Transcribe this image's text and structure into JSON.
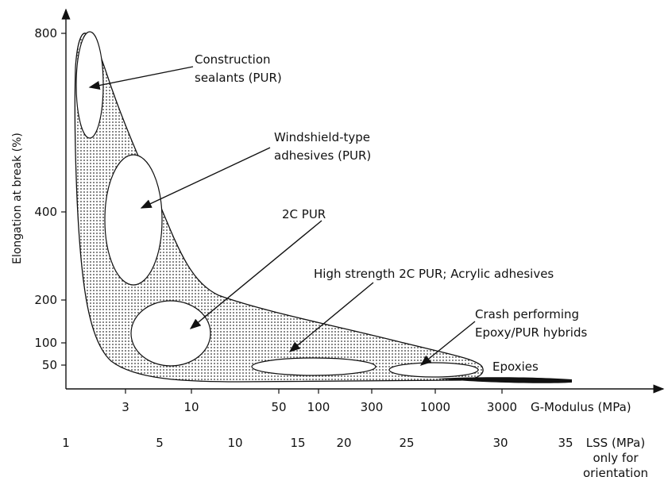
{
  "y_axis": {
    "label": "Elongation at break (%)",
    "ticks": [
      "800",
      "400",
      "200",
      "100",
      "50"
    ]
  },
  "x_axis": {
    "label": "G-Modulus (MPa)",
    "ticks": [
      "3",
      "10",
      "50",
      "100",
      "300",
      "1000",
      "3000"
    ]
  },
  "lss_axis": {
    "label_lines": [
      "LSS (MPa)",
      "only for",
      "orientation"
    ],
    "ticks": [
      "1",
      "5",
      "10",
      "15",
      "20",
      "25",
      "30",
      "35"
    ]
  },
  "annotations": [
    {
      "lines": [
        "Construction",
        "sealants (PUR)"
      ]
    },
    {
      "lines": [
        "Windshield-type",
        "adhesives (PUR)"
      ]
    },
    {
      "lines": [
        "2C PUR"
      ]
    },
    {
      "lines": [
        "High strength 2C PUR; Acrylic adhesives"
      ]
    },
    {
      "lines": [
        "Crash performing",
        "Epoxy/PUR hybrids"
      ]
    },
    {
      "lines": [
        "Epoxies"
      ]
    }
  ]
}
